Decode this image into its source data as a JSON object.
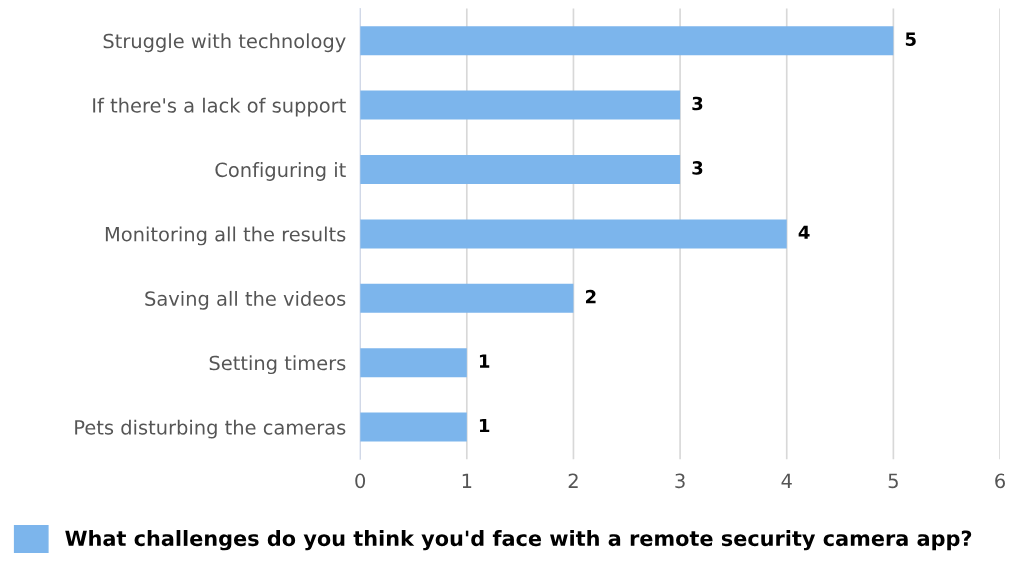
{
  "chart_data": {
    "type": "bar",
    "orientation": "horizontal",
    "categories": [
      "Struggle with technology",
      "If there's a lack of support",
      "Configuring it",
      "Monitoring all the results",
      "Saving all the videos",
      "Setting timers",
      "Pets disturbing the cameras"
    ],
    "series": [
      {
        "name": "What challenges do you think you'd face with a remote security camera app?",
        "color": "#7cb5ec",
        "values": [
          5,
          3,
          3,
          4,
          2,
          1,
          1
        ]
      }
    ],
    "xlim": [
      0,
      6
    ],
    "xticks": [
      0,
      1,
      2,
      3,
      4,
      5,
      6
    ],
    "grid": "x",
    "legend": "bottom left",
    "data_labels": true
  }
}
